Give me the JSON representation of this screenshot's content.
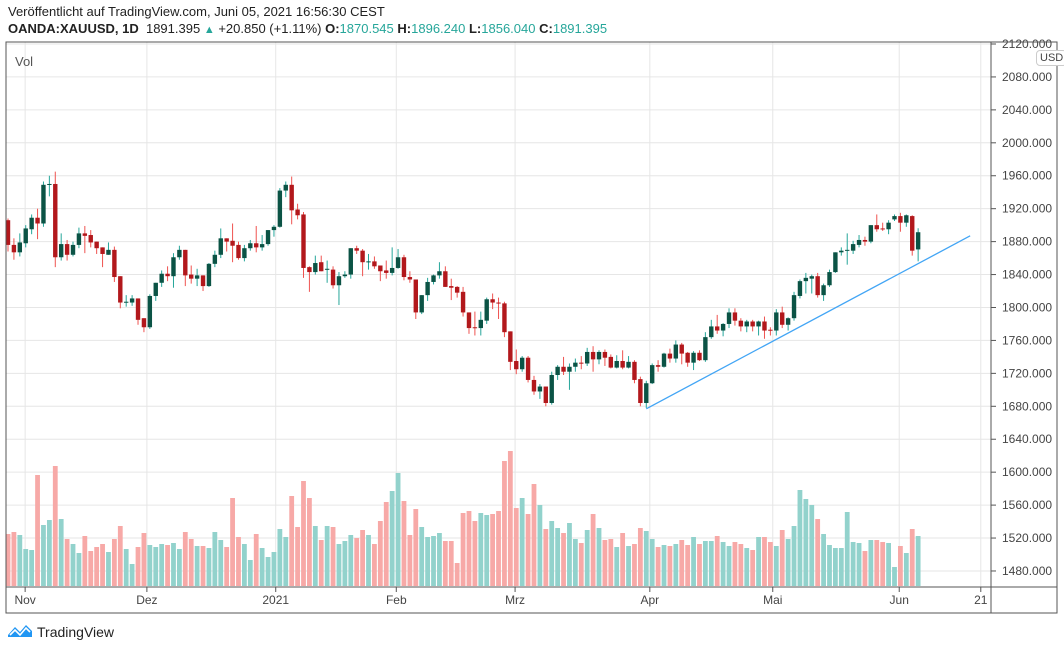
{
  "header": {
    "published": "Veröffentlicht auf TradingView.com, Juni 05, 2021 16:56:30 CEST",
    "symbol": "OANDA:XAUUSD, 1D",
    "last": "1891.395",
    "change": "+20.850 (+1.11%)",
    "o_label": "O:",
    "o": "1870.545",
    "h_label": "H:",
    "h": "1896.240",
    "l_label": "L:",
    "l": "1856.040",
    "c_label": "C:",
    "c": "1891.395"
  },
  "pane": {
    "vol_label": "Vol",
    "currency": "USD"
  },
  "footer": {
    "brand": "TradingView",
    "logo_icon": "tradingview-logo-icon"
  },
  "colors": {
    "up_body": "#0b5345",
    "up_wick": "#26a69a",
    "down_body": "#b2181c",
    "down_wick": "#ef5350",
    "vol_up": "#92d2cc",
    "vol_down": "#f7a9a7",
    "trendline": "#42a5f5",
    "text_value": "#26a69a"
  },
  "chart_data": {
    "type": "candlestick",
    "title": "OANDA:XAUUSD, 1D",
    "ylabel": "USD",
    "ylim": [
      1460,
      2125
    ],
    "yticks": [
      "2120.000",
      "2080.000",
      "2040.000",
      "2000.000",
      "1960.000",
      "1920.000",
      "1880.000",
      "1840.000",
      "1800.000",
      "1760.000",
      "1720.000",
      "1680.000",
      "1640.000",
      "1600.000",
      "1560.000",
      "1520.000",
      "1480.000"
    ],
    "xticks": [
      {
        "label": "Nov",
        "bar": 2.9
      },
      {
        "label": "Dez",
        "bar": 23.5
      },
      {
        "label": "2021",
        "bar": 45.3
      },
      {
        "label": "Feb",
        "bar": 65.7
      },
      {
        "label": "Mrz",
        "bar": 85.8
      },
      {
        "label": "Apr",
        "bar": 108.6
      },
      {
        "label": "Mai",
        "bar": 129.4
      },
      {
        "label": "Jun",
        "bar": 150.8
      },
      {
        "label": "21",
        "bar": 164.6
      }
    ],
    "grid": true,
    "ohlcv_fields": [
      "open",
      "high",
      "low",
      "close",
      "volume_relative"
    ],
    "candles": [
      [
        1906,
        1908,
        1868,
        1876,
        52
      ],
      [
        1876,
        1884,
        1858,
        1867,
        54
      ],
      [
        1867,
        1890,
        1862,
        1879,
        51
      ],
      [
        1878,
        1900,
        1873,
        1896,
        37
      ],
      [
        1895,
        1913,
        1889,
        1909,
        36
      ],
      [
        1909,
        1920,
        1883,
        1902,
        111
      ],
      [
        1902,
        1953,
        1898,
        1949,
        61
      ],
      [
        1949,
        1960,
        1935,
        1950,
        66
      ],
      [
        1950,
        1965,
        1849,
        1861,
        120
      ],
      [
        1861,
        1890,
        1857,
        1877,
        67
      ],
      [
        1877,
        1882,
        1857,
        1864,
        47
      ],
      [
        1864,
        1880,
        1862,
        1876,
        42
      ],
      [
        1876,
        1897,
        1872,
        1890,
        33
      ],
      [
        1890,
        1899,
        1866,
        1887,
        50
      ],
      [
        1888,
        1894,
        1873,
        1879,
        35
      ],
      [
        1880,
        1880,
        1865,
        1872,
        39
      ],
      [
        1873,
        1873,
        1849,
        1865,
        42
      ],
      [
        1864,
        1879,
        1864,
        1870,
        34
      ],
      [
        1870,
        1874,
        1831,
        1837,
        47
      ],
      [
        1838,
        1838,
        1799,
        1806,
        60
      ],
      [
        1806,
        1815,
        1801,
        1807,
        37
      ],
      [
        1806,
        1815,
        1802,
        1811,
        22
      ],
      [
        1811,
        1811,
        1779,
        1785,
        39
      ],
      [
        1787,
        1787,
        1770,
        1776,
        53
      ],
      [
        1776,
        1816,
        1774,
        1814,
        41
      ],
      [
        1814,
        1830,
        1808,
        1830,
        39
      ],
      [
        1830,
        1845,
        1825,
        1841,
        42
      ],
      [
        1841,
        1850,
        1832,
        1838,
        41
      ],
      [
        1838,
        1866,
        1824,
        1861,
        43
      ],
      [
        1861,
        1875,
        1858,
        1870,
        37
      ],
      [
        1870,
        1870,
        1826,
        1839,
        54
      ],
      [
        1840,
        1851,
        1829,
        1835,
        47
      ],
      [
        1835,
        1847,
        1826,
        1839,
        40
      ],
      [
        1839,
        1839,
        1820,
        1826,
        40
      ],
      [
        1826,
        1854,
        1825,
        1853,
        38
      ],
      [
        1853,
        1869,
        1849,
        1864,
        54
      ],
      [
        1864,
        1896,
        1860,
        1884,
        46
      ],
      [
        1884,
        1884,
        1868,
        1880,
        39
      ],
      [
        1881,
        1902,
        1855,
        1875,
        88
      ],
      [
        1876,
        1880,
        1858,
        1860,
        49
      ],
      [
        1860,
        1876,
        1856,
        1872,
        42
      ],
      [
        1872,
        1882,
        1869,
        1878,
        26
      ],
      [
        1878,
        1899,
        1867,
        1873,
        52
      ],
      [
        1873,
        1888,
        1869,
        1877,
        38
      ],
      [
        1877,
        1894,
        1875,
        1894,
        29
      ],
      [
        1894,
        1900,
        1886,
        1898,
        34
      ],
      [
        1898,
        1945,
        1897,
        1942,
        57
      ],
      [
        1942,
        1953,
        1934,
        1949,
        49
      ],
      [
        1949,
        1959,
        1901,
        1918,
        90
      ],
      [
        1919,
        1926,
        1907,
        1912,
        59
      ],
      [
        1913,
        1916,
        1836,
        1848,
        105
      ],
      [
        1849,
        1850,
        1819,
        1843,
        88
      ],
      [
        1843,
        1863,
        1840,
        1854,
        60
      ],
      [
        1855,
        1863,
        1844,
        1844,
        46
      ],
      [
        1846,
        1857,
        1830,
        1847,
        60
      ],
      [
        1846,
        1850,
        1823,
        1827,
        59
      ],
      [
        1827,
        1843,
        1803,
        1838,
        42
      ],
      [
        1838,
        1844,
        1836,
        1840,
        45
      ],
      [
        1840,
        1872,
        1835,
        1872,
        51
      ],
      [
        1872,
        1875,
        1865,
        1869,
        48
      ],
      [
        1869,
        1871,
        1838,
        1855,
        56
      ],
      [
        1855,
        1865,
        1846,
        1856,
        51
      ],
      [
        1856,
        1862,
        1847,
        1850,
        42
      ],
      [
        1851,
        1851,
        1832,
        1844,
        65
      ],
      [
        1845,
        1857,
        1835,
        1842,
        84
      ],
      [
        1842,
        1873,
        1839,
        1848,
        95
      ],
      [
        1848,
        1871,
        1847,
        1861,
        113
      ],
      [
        1861,
        1864,
        1833,
        1837,
        85
      ],
      [
        1837,
        1844,
        1830,
        1834,
        51
      ],
      [
        1834,
        1834,
        1786,
        1794,
        77
      ],
      [
        1794,
        1815,
        1792,
        1815,
        59
      ],
      [
        1815,
        1836,
        1808,
        1831,
        49
      ],
      [
        1831,
        1840,
        1828,
        1839,
        50
      ],
      [
        1839,
        1855,
        1835,
        1844,
        53
      ],
      [
        1844,
        1850,
        1825,
        1825,
        45
      ],
      [
        1826,
        1835,
        1809,
        1824,
        45
      ],
      [
        1825,
        1826,
        1812,
        1818,
        23
      ],
      [
        1819,
        1825,
        1789,
        1794,
        73
      ],
      [
        1794,
        1794,
        1768,
        1775,
        75
      ],
      [
        1776,
        1795,
        1766,
        1775,
        65
      ],
      [
        1775,
        1795,
        1766,
        1785,
        73
      ],
      [
        1784,
        1812,
        1780,
        1810,
        71
      ],
      [
        1810,
        1817,
        1798,
        1806,
        72
      ],
      [
        1806,
        1812,
        1786,
        1805,
        75
      ],
      [
        1805,
        1807,
        1764,
        1770,
        125
      ],
      [
        1771,
        1771,
        1724,
        1734,
        135
      ],
      [
        1735,
        1749,
        1719,
        1725,
        78
      ],
      [
        1725,
        1741,
        1722,
        1739,
        88
      ],
      [
        1739,
        1741,
        1709,
        1712,
        72
      ],
      [
        1712,
        1717,
        1694,
        1698,
        102
      ],
      [
        1698,
        1707,
        1689,
        1704,
        81
      ],
      [
        1704,
        1704,
        1680,
        1684,
        57
      ],
      [
        1684,
        1722,
        1682,
        1718,
        65
      ],
      [
        1718,
        1730,
        1712,
        1728,
        58
      ],
      [
        1728,
        1740,
        1718,
        1722,
        53
      ],
      [
        1722,
        1732,
        1700,
        1728,
        63
      ],
      [
        1728,
        1738,
        1722,
        1733,
        47
      ],
      [
        1733,
        1741,
        1725,
        1732,
        43
      ],
      [
        1732,
        1751,
        1729,
        1746,
        56
      ],
      [
        1746,
        1753,
        1722,
        1737,
        72
      ],
      [
        1737,
        1748,
        1731,
        1746,
        58
      ],
      [
        1746,
        1749,
        1729,
        1739,
        46
      ],
      [
        1740,
        1743,
        1726,
        1727,
        47
      ],
      [
        1727,
        1742,
        1726,
        1735,
        39
      ],
      [
        1735,
        1748,
        1725,
        1727,
        53
      ],
      [
        1727,
        1741,
        1726,
        1734,
        40
      ],
      [
        1734,
        1736,
        1708,
        1712,
        42
      ],
      [
        1713,
        1716,
        1680,
        1684,
        58
      ],
      [
        1684,
        1711,
        1678,
        1708,
        55
      ],
      [
        1708,
        1732,
        1707,
        1730,
        47
      ],
      [
        1730,
        1736,
        1722,
        1728,
        39
      ],
      [
        1728,
        1745,
        1727,
        1744,
        41
      ],
      [
        1744,
        1750,
        1733,
        1738,
        40
      ],
      [
        1738,
        1760,
        1733,
        1755,
        42
      ],
      [
        1755,
        1757,
        1731,
        1744,
        46
      ],
      [
        1745,
        1746,
        1728,
        1733,
        41
      ],
      [
        1733,
        1747,
        1724,
        1745,
        49
      ],
      [
        1745,
        1748,
        1735,
        1736,
        42
      ],
      [
        1736,
        1770,
        1734,
        1764,
        45
      ],
      [
        1764,
        1785,
        1762,
        1777,
        45
      ],
      [
        1777,
        1791,
        1768,
        1772,
        50
      ],
      [
        1772,
        1781,
        1765,
        1780,
        44
      ],
      [
        1780,
        1799,
        1775,
        1794,
        40
      ],
      [
        1794,
        1799,
        1778,
        1784,
        44
      ],
      [
        1784,
        1787,
        1771,
        1777,
        42
      ],
      [
        1777,
        1785,
        1770,
        1783,
        38
      ],
      [
        1783,
        1785,
        1771,
        1777,
        36
      ],
      [
        1777,
        1784,
        1766,
        1783,
        49
      ],
      [
        1783,
        1789,
        1762,
        1772,
        49
      ],
      [
        1773,
        1776,
        1766,
        1772,
        44
      ],
      [
        1772,
        1798,
        1766,
        1794,
        40
      ],
      [
        1794,
        1801,
        1775,
        1779,
        56
      ],
      [
        1779,
        1788,
        1772,
        1787,
        47
      ],
      [
        1787,
        1819,
        1784,
        1815,
        60
      ],
      [
        1814,
        1834,
        1811,
        1832,
        96
      ],
      [
        1832,
        1842,
        1817,
        1836,
        87
      ],
      [
        1835,
        1840,
        1817,
        1838,
        81
      ],
      [
        1838,
        1842,
        1812,
        1815,
        67
      ],
      [
        1815,
        1829,
        1808,
        1827,
        52
      ],
      [
        1827,
        1846,
        1825,
        1843,
        41
      ],
      [
        1843,
        1867,
        1842,
        1867,
        38
      ],
      [
        1867,
        1873,
        1863,
        1869,
        38
      ],
      [
        1869,
        1890,
        1852,
        1870,
        74
      ],
      [
        1869,
        1881,
        1865,
        1877,
        44
      ],
      [
        1876,
        1888,
        1873,
        1882,
        43
      ],
      [
        1882,
        1886,
        1875,
        1880,
        35
      ],
      [
        1880,
        1900,
        1878,
        1900,
        46
      ],
      [
        1900,
        1913,
        1892,
        1895,
        46
      ],
      [
        1896,
        1903,
        1893,
        1895.5,
        44
      ],
      [
        1895,
        1906,
        1889,
        1903,
        43
      ],
      [
        1907,
        1913,
        1905,
        1911,
        19
      ],
      [
        1911,
        1915,
        1892,
        1903,
        40
      ],
      [
        1903,
        1913,
        1898,
        1912,
        33
      ],
      [
        1911,
        1912,
        1863,
        1869,
        57
      ],
      [
        1870.545,
        1896.24,
        1856.04,
        1891.395,
        50
      ]
    ],
    "trendline": {
      "from": {
        "bar": 108,
        "price": 1677
      },
      "to": {
        "bar": 162.8,
        "price": 1887
      }
    }
  }
}
